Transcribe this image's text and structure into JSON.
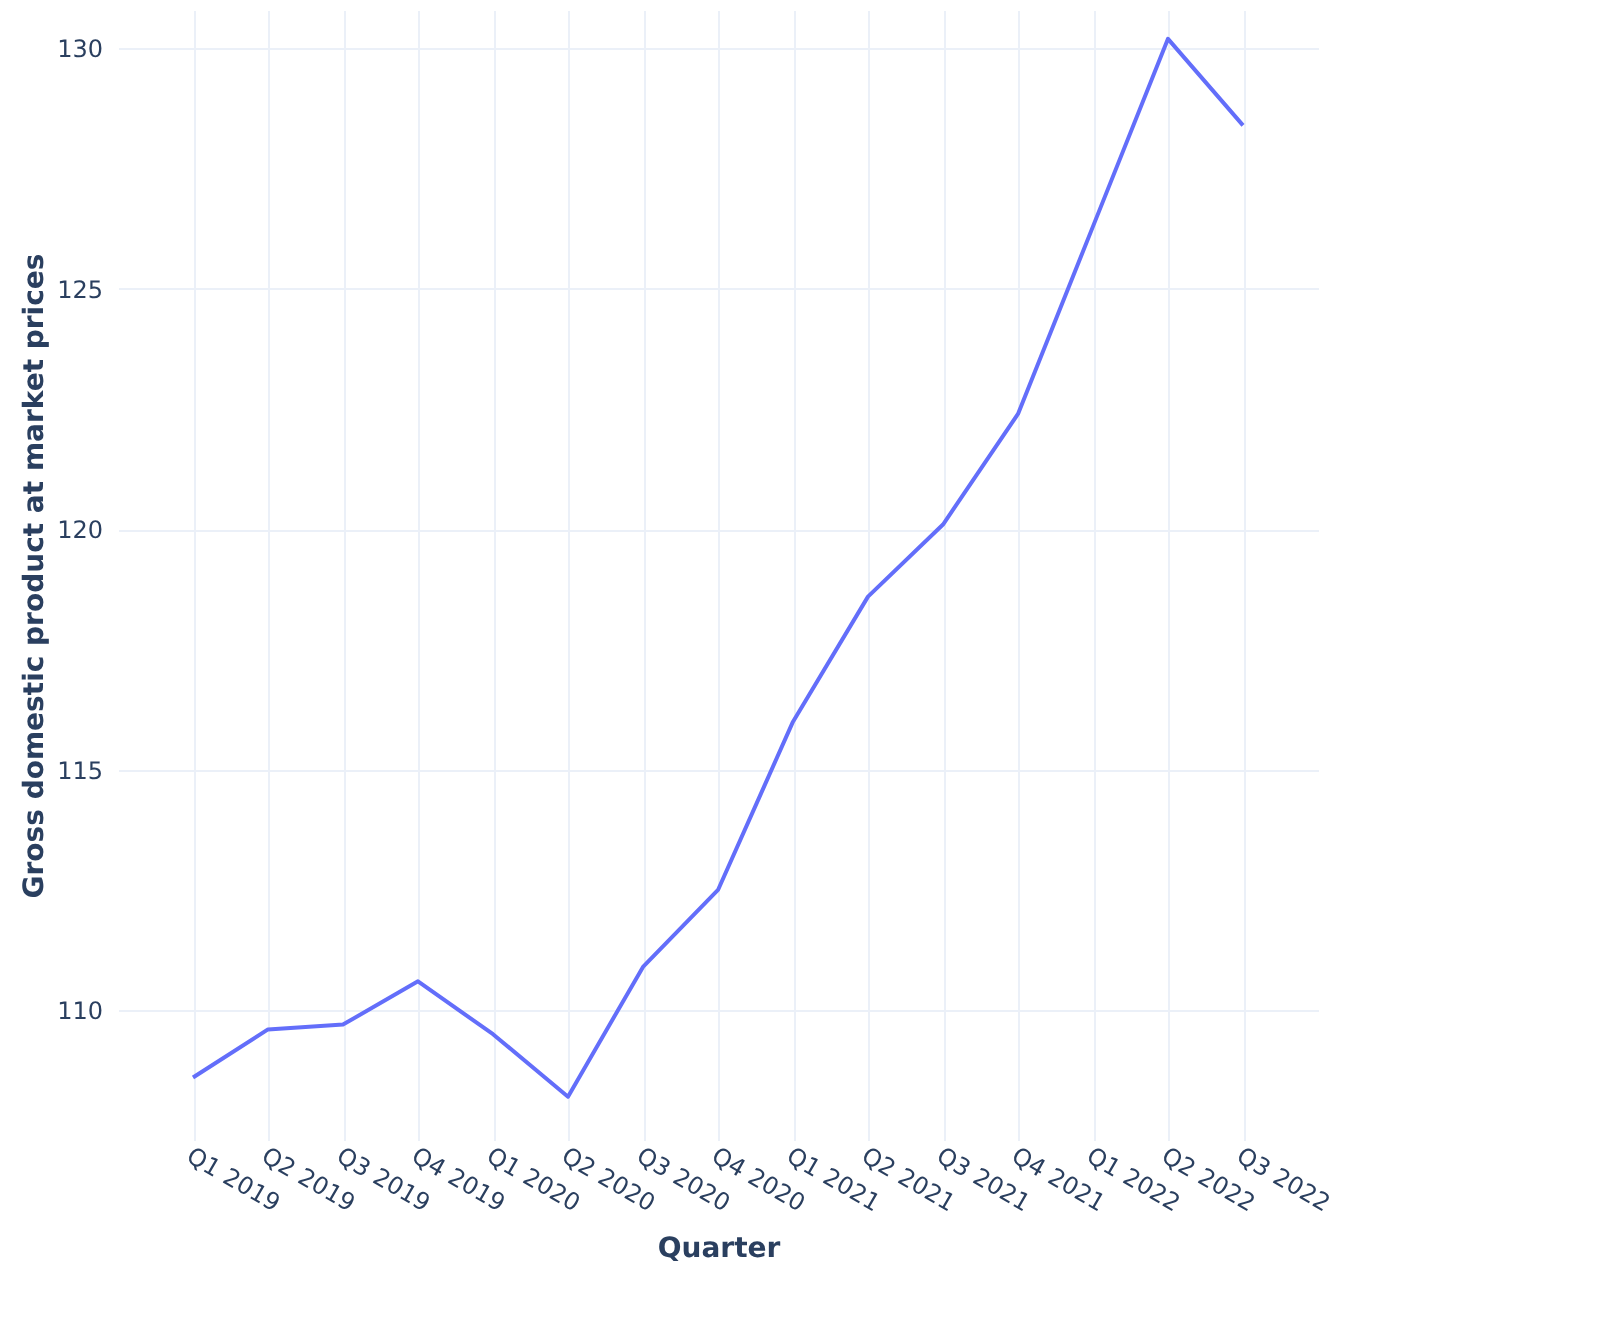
{
  "chart_data": {
    "type": "line",
    "xlabel": "Quarter",
    "ylabel": "Gross domestic product at market prices",
    "categories": [
      "Q1 2019",
      "Q2 2019",
      "Q3 2019",
      "Q4 2019",
      "Q1 2020",
      "Q2 2020",
      "Q3 2020",
      "Q4 2020",
      "Q1 2021",
      "Q2 2021",
      "Q3 2021",
      "Q4 2021",
      "Q1 2022",
      "Q2 2022",
      "Q3 2022"
    ],
    "series": [
      {
        "color": "#636efa",
        "values": [
          108.6,
          109.6,
          109.7,
          110.6,
          109.5,
          108.2,
          110.9,
          112.5,
          116.0,
          118.6,
          120.1,
          122.4,
          126.3,
          130.2,
          128.4
        ]
      }
    ],
    "ylim": [
      107.3,
      130.8
    ],
    "yticks": [
      110,
      115,
      120,
      125,
      130
    ],
    "grid": true,
    "marker": "none",
    "line_style": "solid"
  }
}
